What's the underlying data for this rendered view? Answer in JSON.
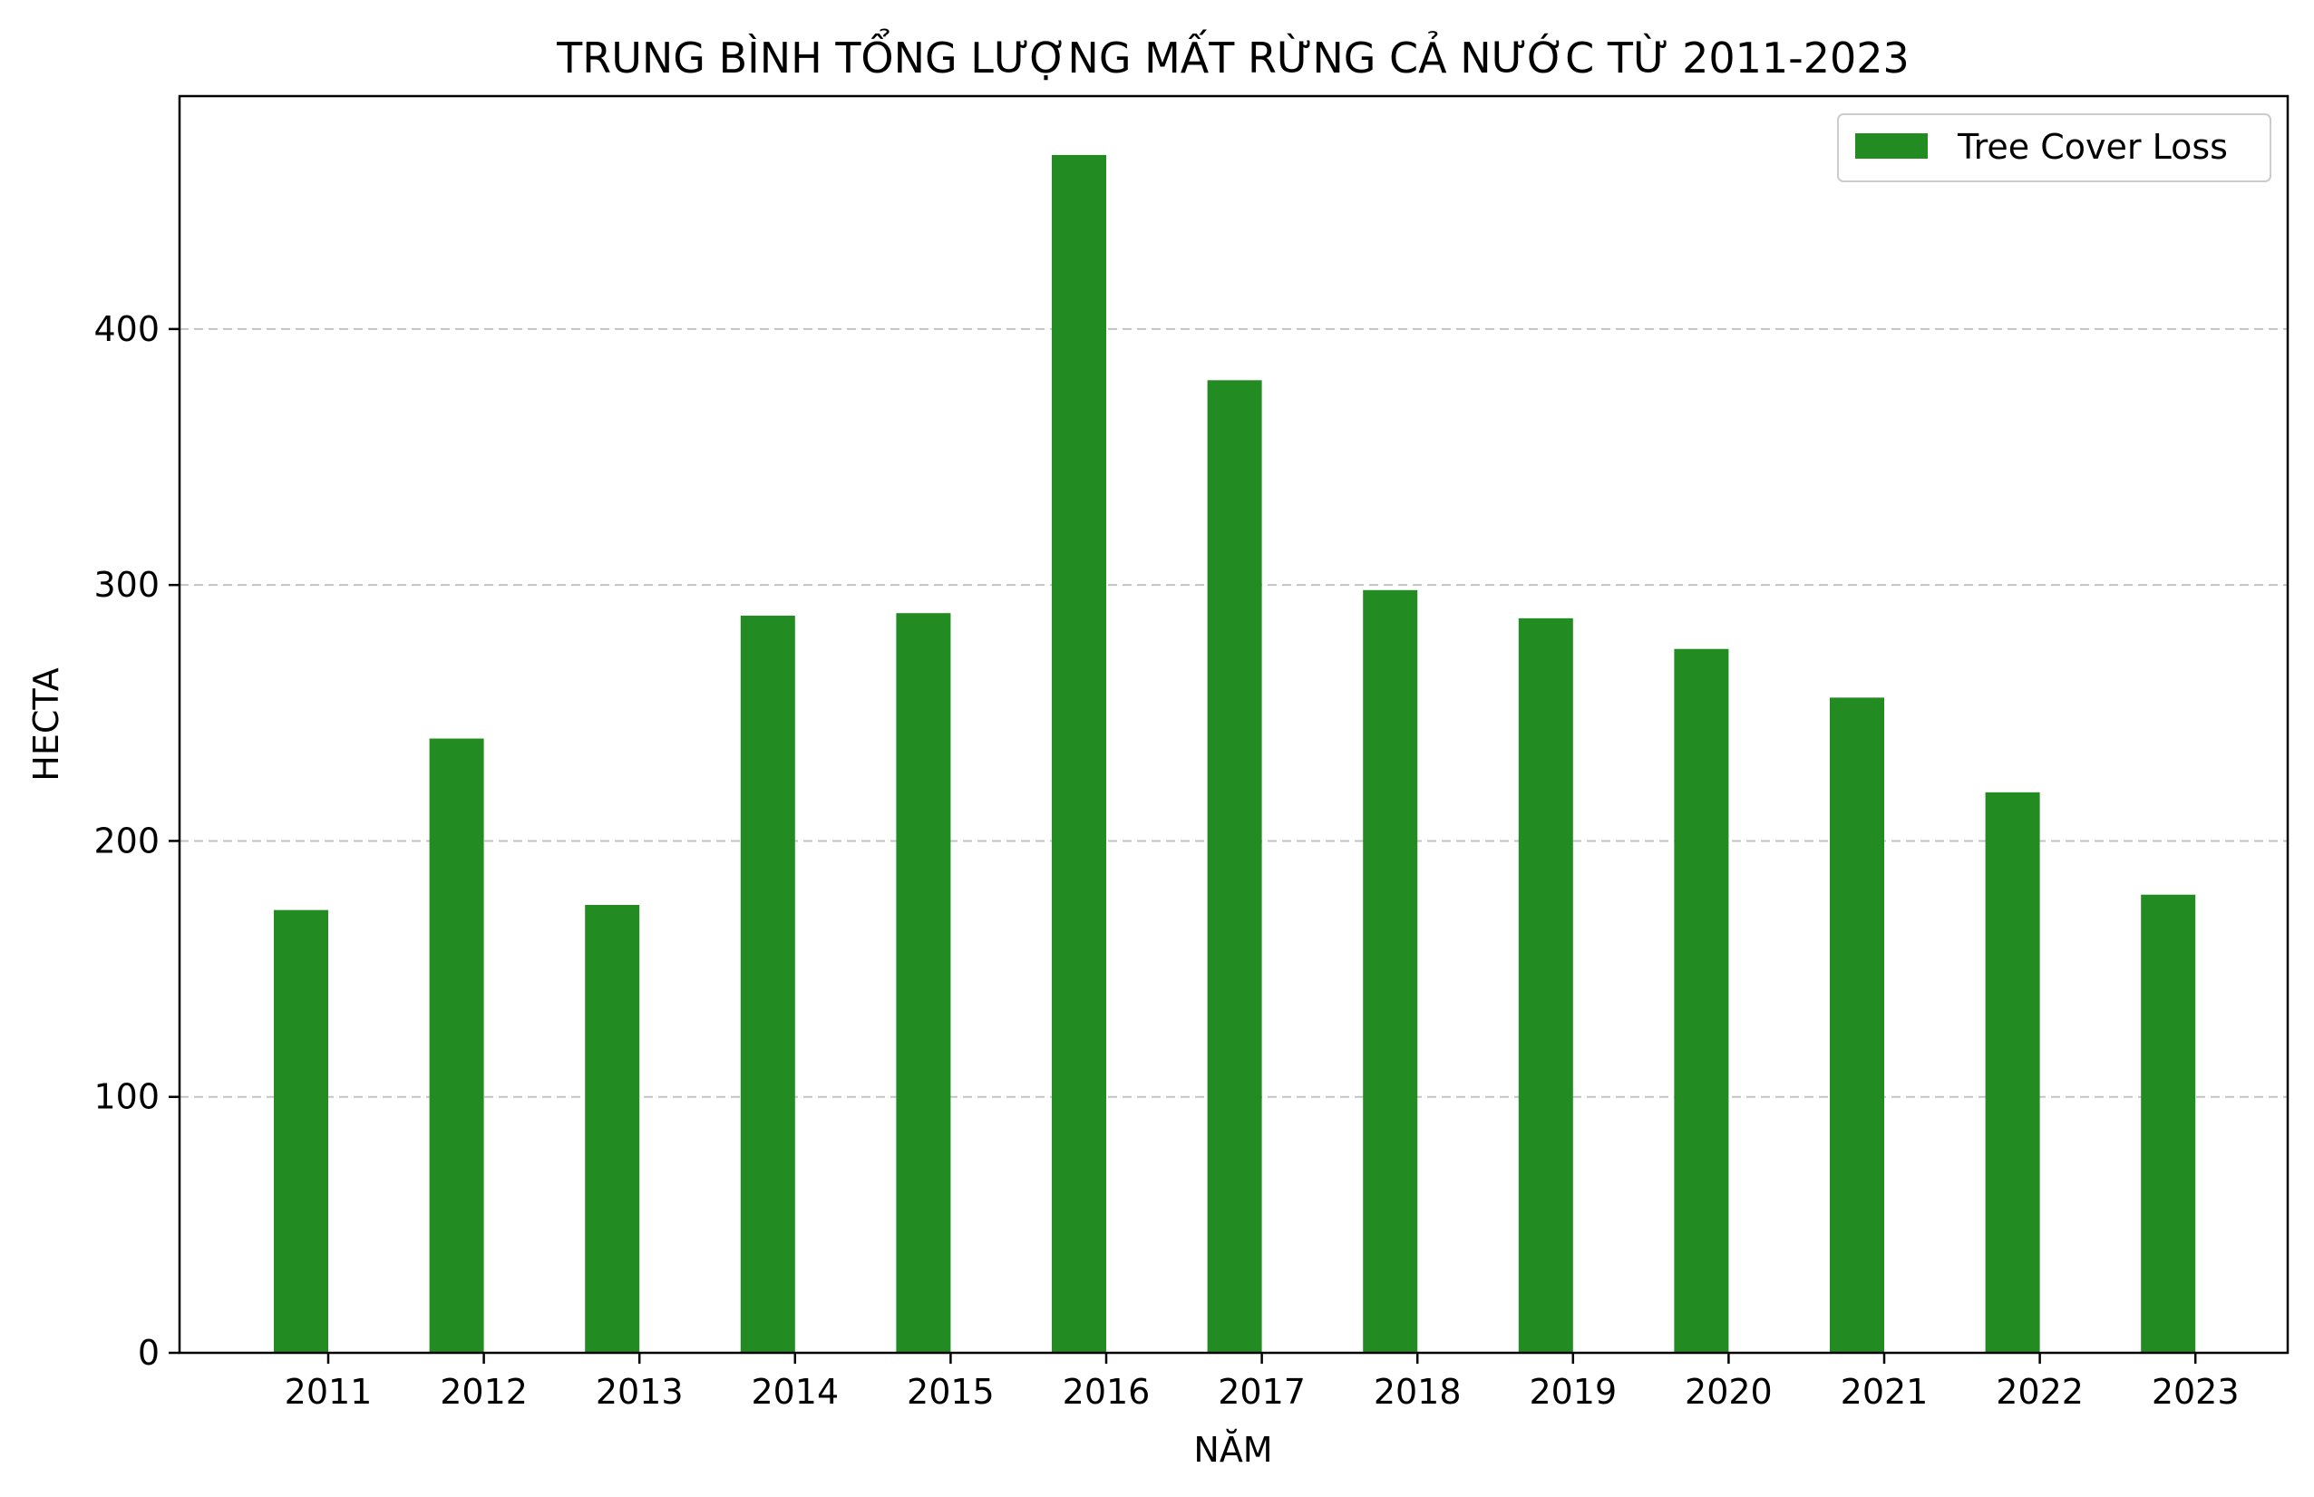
{
  "chart_data": {
    "type": "bar",
    "title": "TRUNG BÌNH TỔNG LƯỢNG MẤT RỪNG CẢ NƯỚC TỪ 2011-2023",
    "xlabel": "NĂM",
    "ylabel": "HECTA",
    "categories": [
      "2011",
      "2012",
      "2013",
      "2014",
      "2015",
      "2016",
      "2017",
      "2018",
      "2019",
      "2020",
      "2021",
      "2022",
      "2023"
    ],
    "series": [
      {
        "name": "Tree Cover Loss",
        "color": "#228b22",
        "values": [
          173,
          240,
          175,
          288,
          289,
          468,
          380,
          298,
          287,
          275,
          256,
          219,
          179
        ]
      }
    ],
    "yticks": [
      0,
      100,
      200,
      300,
      400
    ],
    "ylim": [
      0,
      491
    ],
    "grid": "y-dashed",
    "legend_position": "top-right"
  }
}
